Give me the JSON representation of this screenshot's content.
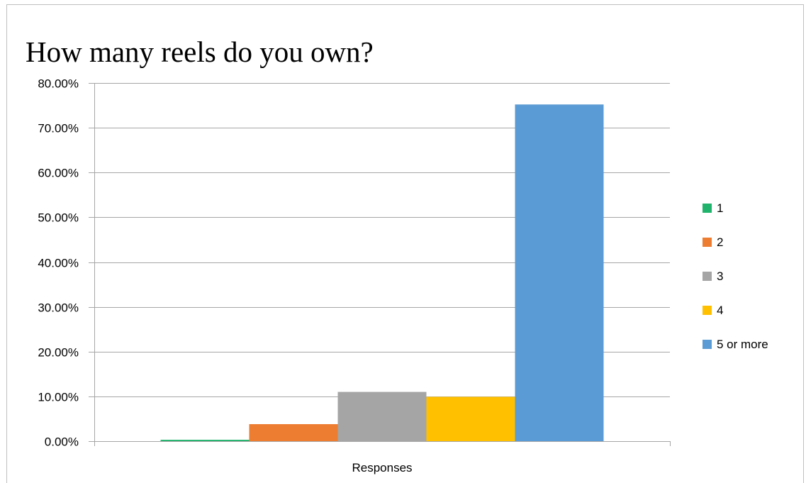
{
  "chart_data": {
    "type": "bar",
    "title": "How many reels do you own?",
    "categories": [
      "Responses"
    ],
    "series": [
      {
        "name": "1",
        "values": [
          0.3
        ],
        "color": "#1fb36b"
      },
      {
        "name": "2",
        "values": [
          3.8
        ],
        "color": "#ed7d31"
      },
      {
        "name": "3",
        "values": [
          11.0
        ],
        "color": "#a5a5a5"
      },
      {
        "name": "4",
        "values": [
          9.9
        ],
        "color": "#ffc000"
      },
      {
        "name": "5 or more",
        "values": [
          75.2
        ],
        "color": "#5b9bd5"
      }
    ],
    "yticks": [
      "0.00%",
      "10.00%",
      "20.00%",
      "30.00%",
      "40.00%",
      "50.00%",
      "60.00%",
      "70.00%",
      "80.00%"
    ],
    "ylim": [
      0,
      80
    ],
    "grid": true,
    "legend": "right"
  }
}
